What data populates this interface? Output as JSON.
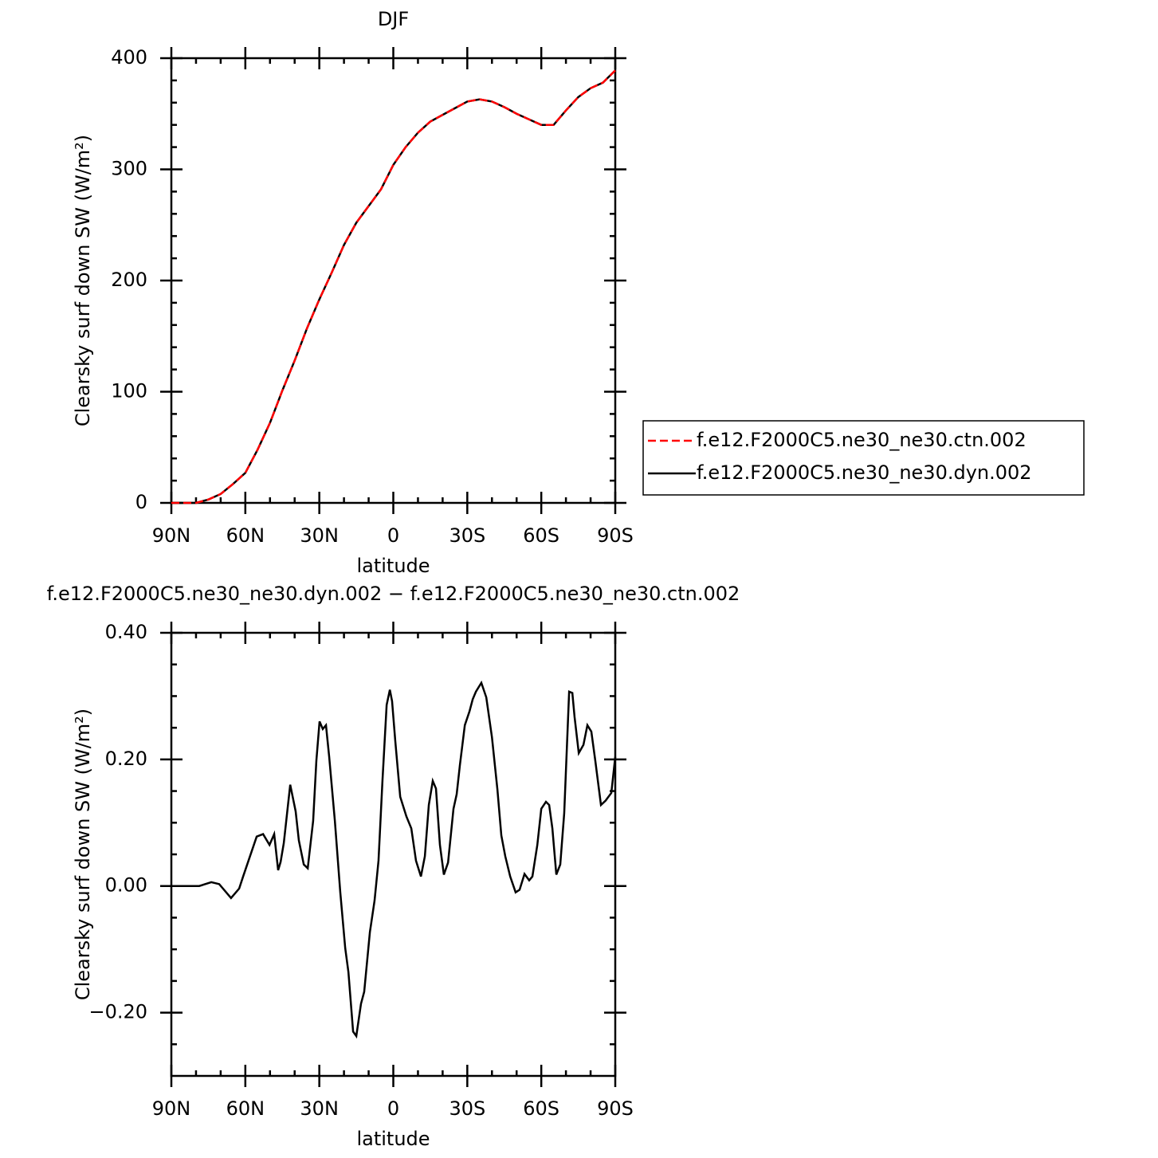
{
  "chart_data": [
    {
      "type": "line",
      "title": "DJF",
      "xlabel": "latitude",
      "ylabel": "Clearsky surf down SW (W/m²)",
      "x": [
        90,
        85,
        80,
        75,
        70,
        65,
        60,
        55,
        50,
        45,
        40,
        35,
        30,
        25,
        20,
        15,
        10,
        5,
        0,
        -5,
        -10,
        -15,
        -20,
        -25,
        -30,
        -35,
        -40,
        -45,
        -50,
        -55,
        -60,
        -65,
        -70,
        -75,
        -80,
        -85,
        -90
      ],
      "series": [
        {
          "name": "f.e12.F2000C5.ne30_ne30.dyn.002",
          "color": "#000000",
          "dash": false,
          "values": [
            0,
            0,
            0,
            3,
            8,
            17,
            27,
            48,
            72,
            101,
            128,
            157,
            183,
            207,
            232,
            252,
            267,
            282,
            304,
            320,
            333,
            343,
            349,
            355,
            361,
            363,
            361,
            356,
            350,
            345,
            340,
            340,
            353,
            365,
            373,
            378,
            389
          ]
        },
        {
          "name": "f.e12.F2000C5.ne30_ne30.ctn.002",
          "color": "#ff0000",
          "dash": true,
          "values": [
            0,
            0,
            0,
            3,
            8,
            17,
            27,
            48,
            72,
            101,
            128,
            157,
            183,
            207,
            232,
            252,
            267,
            282,
            304,
            320,
            333,
            343,
            349,
            355,
            361,
            363,
            361,
            356,
            350,
            345,
            340,
            340,
            353,
            365,
            373,
            378,
            389
          ]
        }
      ],
      "legend_order": [
        1,
        0
      ],
      "xlim": [
        90,
        -90
      ],
      "xticks": [
        {
          "value": 90,
          "label": "90N"
        },
        {
          "value": 60,
          "label": "60N"
        },
        {
          "value": 30,
          "label": "30N"
        },
        0,
        {
          "value": -30,
          "label": "30S"
        },
        {
          "value": -60,
          "label": "60S"
        },
        {
          "value": -90,
          "label": "90S"
        }
      ],
      "xminorticks": [
        80,
        70,
        50,
        40,
        20,
        10,
        -10,
        -20,
        -40,
        -50,
        -70,
        -80
      ],
      "ylim": [
        0,
        400
      ],
      "yticks": [
        0,
        100,
        200,
        300,
        400
      ],
      "yminorticks": [
        20,
        40,
        60,
        80,
        120,
        140,
        160,
        180,
        220,
        240,
        260,
        280,
        320,
        340,
        360,
        380
      ]
    },
    {
      "type": "line",
      "title": "f.e12.F2000C5.ne30_ne30.dyn.002 − f.e12.F2000C5.ne30_ne30.ctn.002",
      "xlabel": "latitude",
      "ylabel": "Clearsky surf down SW (W/m²)",
      "x": [
        90,
        78.7,
        73.8,
        70.6,
        65.8,
        62.5,
        60.9,
        55.4,
        52.8,
        50.2,
        48.3,
        46.7,
        45.7,
        44.4,
        41.8,
        39.6,
        38.3,
        36.3,
        34.7,
        32.5,
        31.2,
        29.9,
        28.6,
        27.3,
        26.0,
        23.7,
        21.5,
        19.5,
        18.2,
        16.3,
        15.0,
        13.1,
        11.8,
        9.5,
        7.6,
        6.0,
        4.4,
        2.7,
        1.4,
        0.5,
        -0.8,
        -2.8,
        -5.3,
        -7.3,
        -9.2,
        -11.2,
        -12.8,
        -14.4,
        -16.0,
        -17.3,
        -18.9,
        -20.5,
        -22.2,
        -24.4,
        -25.7,
        -27.0,
        -29.0,
        -30.9,
        -32.2,
        -33.5,
        -35.7,
        -37.7,
        -40.0,
        -42.2,
        -43.8,
        -45.4,
        -47.4,
        -49.6,
        -51.2,
        -53.2,
        -55.1,
        -56.4,
        -58.4,
        -60.0,
        -61.9,
        -63.2,
        -64.5,
        -66.1,
        -67.7,
        -69.3,
        -71.3,
        -72.6,
        -73.5,
        -75.2,
        -77.1,
        -78.7,
        -80.3,
        -81.9,
        -84.2,
        -86.1,
        -88.4,
        -90
      ],
      "series": [
        {
          "name": null,
          "color": "#000000",
          "dash": false,
          "values": [
            0,
            0,
            0.006,
            0.003,
            -0.019,
            -0.004,
            0.015,
            0.078,
            0.082,
            0.065,
            0.082,
            0.025,
            0.038,
            0.068,
            0.16,
            0.118,
            0.072,
            0.034,
            0.028,
            0.103,
            0.198,
            0.26,
            0.248,
            0.254,
            0.204,
            0.103,
            -0.01,
            -0.098,
            -0.136,
            -0.23,
            -0.237,
            -0.186,
            -0.167,
            -0.073,
            -0.023,
            0.04,
            0.166,
            0.286,
            0.31,
            0.292,
            0.229,
            0.141,
            0.11,
            0.091,
            0.04,
            0.015,
            0.047,
            0.128,
            0.166,
            0.154,
            0.065,
            0.018,
            0.037,
            0.122,
            0.145,
            0.191,
            0.254,
            0.276,
            0.295,
            0.307,
            0.321,
            0.298,
            0.235,
            0.153,
            0.08,
            0.047,
            0.015,
            -0.01,
            -0.006,
            0.019,
            0.009,
            0.015,
            0.065,
            0.122,
            0.133,
            0.128,
            0.091,
            0.018,
            0.034,
            0.115,
            0.307,
            0.305,
            0.267,
            0.21,
            0.223,
            0.254,
            0.244,
            0.198,
            0.128,
            0.135,
            0.147,
            0.204
          ]
        }
      ],
      "xlim": [
        90,
        -90
      ],
      "xticks": [
        {
          "value": 90,
          "label": "90N"
        },
        {
          "value": 60,
          "label": "60N"
        },
        {
          "value": 30,
          "label": "30N"
        },
        0,
        {
          "value": -30,
          "label": "30S"
        },
        {
          "value": -60,
          "label": "60S"
        },
        {
          "value": -90,
          "label": "90S"
        }
      ],
      "xminorticks": [
        80,
        70,
        50,
        40,
        20,
        10,
        -10,
        -20,
        -40,
        -50,
        -70,
        -80
      ],
      "ylim": [
        -0.3,
        0.4
      ],
      "yticks": [
        {
          "value": 0.4,
          "label": "0.40"
        },
        {
          "value": 0.2,
          "label": "0.20"
        },
        {
          "value": 0,
          "label": "0.00"
        },
        {
          "value": -0.2,
          "label": "−0.20"
        }
      ],
      "yminorticks": [
        0.35,
        0.3,
        0.25,
        0.15,
        0.1,
        0.05,
        -0.05,
        -0.1,
        -0.15,
        -0.25
      ]
    }
  ]
}
